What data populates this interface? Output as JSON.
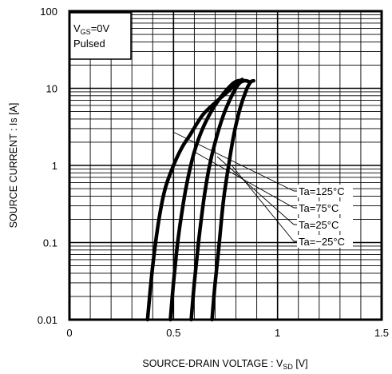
{
  "chart_data": {
    "type": "line",
    "xlabel": {
      "main": "SOURCE-DRAIN VOLTAGE : V",
      "sub": "SD",
      "unit": " [V]"
    },
    "ylabel": "SOURCE CURRENT : Is [A]",
    "xlim": [
      0,
      1.5
    ],
    "ylim": [
      0.01,
      100
    ],
    "yscale": "log",
    "grid": true,
    "x_ticks": [
      {
        "value": 0,
        "label": "0"
      },
      {
        "value": 0.5,
        "label": "0.5"
      },
      {
        "value": 1.0,
        "label": "1"
      },
      {
        "value": 1.5,
        "label": "1.5"
      }
    ],
    "y_ticks": [
      {
        "value": 0.01,
        "label": "0.01"
      },
      {
        "value": 0.1,
        "label": "0.1"
      },
      {
        "value": 1,
        "label": "1"
      },
      {
        "value": 10,
        "label": "10"
      },
      {
        "value": 100,
        "label": "100"
      }
    ],
    "conditions": {
      "line1_main": "V",
      "line1_sub": "GS",
      "line1_rest": "=0V",
      "line2": "Pulsed"
    },
    "series": [
      {
        "name": "Ta=125°C",
        "points": [
          [
            0.375,
            0.01
          ],
          [
            0.4,
            0.05
          ],
          [
            0.43,
            0.2
          ],
          [
            0.46,
            0.5
          ],
          [
            0.5,
            1.0
          ],
          [
            0.54,
            1.7
          ],
          [
            0.58,
            2.5
          ],
          [
            0.64,
            4.5
          ],
          [
            0.7,
            6.5
          ],
          [
            0.76,
            9.0
          ],
          [
            0.805,
            11.8
          ],
          [
            0.83,
            13.0
          ]
        ]
      },
      {
        "name": "Ta=75°C",
        "points": [
          [
            0.485,
            0.01
          ],
          [
            0.5,
            0.03
          ],
          [
            0.52,
            0.1
          ],
          [
            0.545,
            0.3
          ],
          [
            0.57,
            0.7
          ],
          [
            0.6,
            1.5
          ],
          [
            0.64,
            3.0
          ],
          [
            0.69,
            5.5
          ],
          [
            0.74,
            8.5
          ],
          [
            0.785,
            11.5
          ],
          [
            0.81,
            12.5
          ],
          [
            0.835,
            12.5
          ]
        ]
      },
      {
        "name": "Ta=25°C",
        "points": [
          [
            0.585,
            0.01
          ],
          [
            0.6,
            0.03
          ],
          [
            0.62,
            0.1
          ],
          [
            0.645,
            0.35
          ],
          [
            0.67,
            0.9
          ],
          [
            0.7,
            2.0
          ],
          [
            0.74,
            4.5
          ],
          [
            0.78,
            8.0
          ],
          [
            0.815,
            11.5
          ],
          [
            0.84,
            12.5
          ],
          [
            0.86,
            12.3
          ]
        ]
      },
      {
        "name": "Ta=−25°C",
        "points": [
          [
            0.685,
            0.01
          ],
          [
            0.7,
            0.03
          ],
          [
            0.72,
            0.1
          ],
          [
            0.74,
            0.35
          ],
          [
            0.765,
            1.0
          ],
          [
            0.79,
            2.5
          ],
          [
            0.82,
            5.5
          ],
          [
            0.85,
            9.5
          ],
          [
            0.87,
            12.0
          ],
          [
            0.885,
            12.5
          ]
        ]
      }
    ],
    "annotations": [
      {
        "label": "Ta=125°C",
        "anchor": [
          0.5,
          2.7
        ]
      },
      {
        "label": "Ta=75°C",
        "anchor": [
          0.6,
          1.5
        ]
      },
      {
        "label": "Ta=25°C",
        "anchor": [
          0.71,
          1.3
        ]
      },
      {
        "label": "Ta=−25°C",
        "anchor": [
          0.78,
          1.0
        ]
      }
    ]
  }
}
